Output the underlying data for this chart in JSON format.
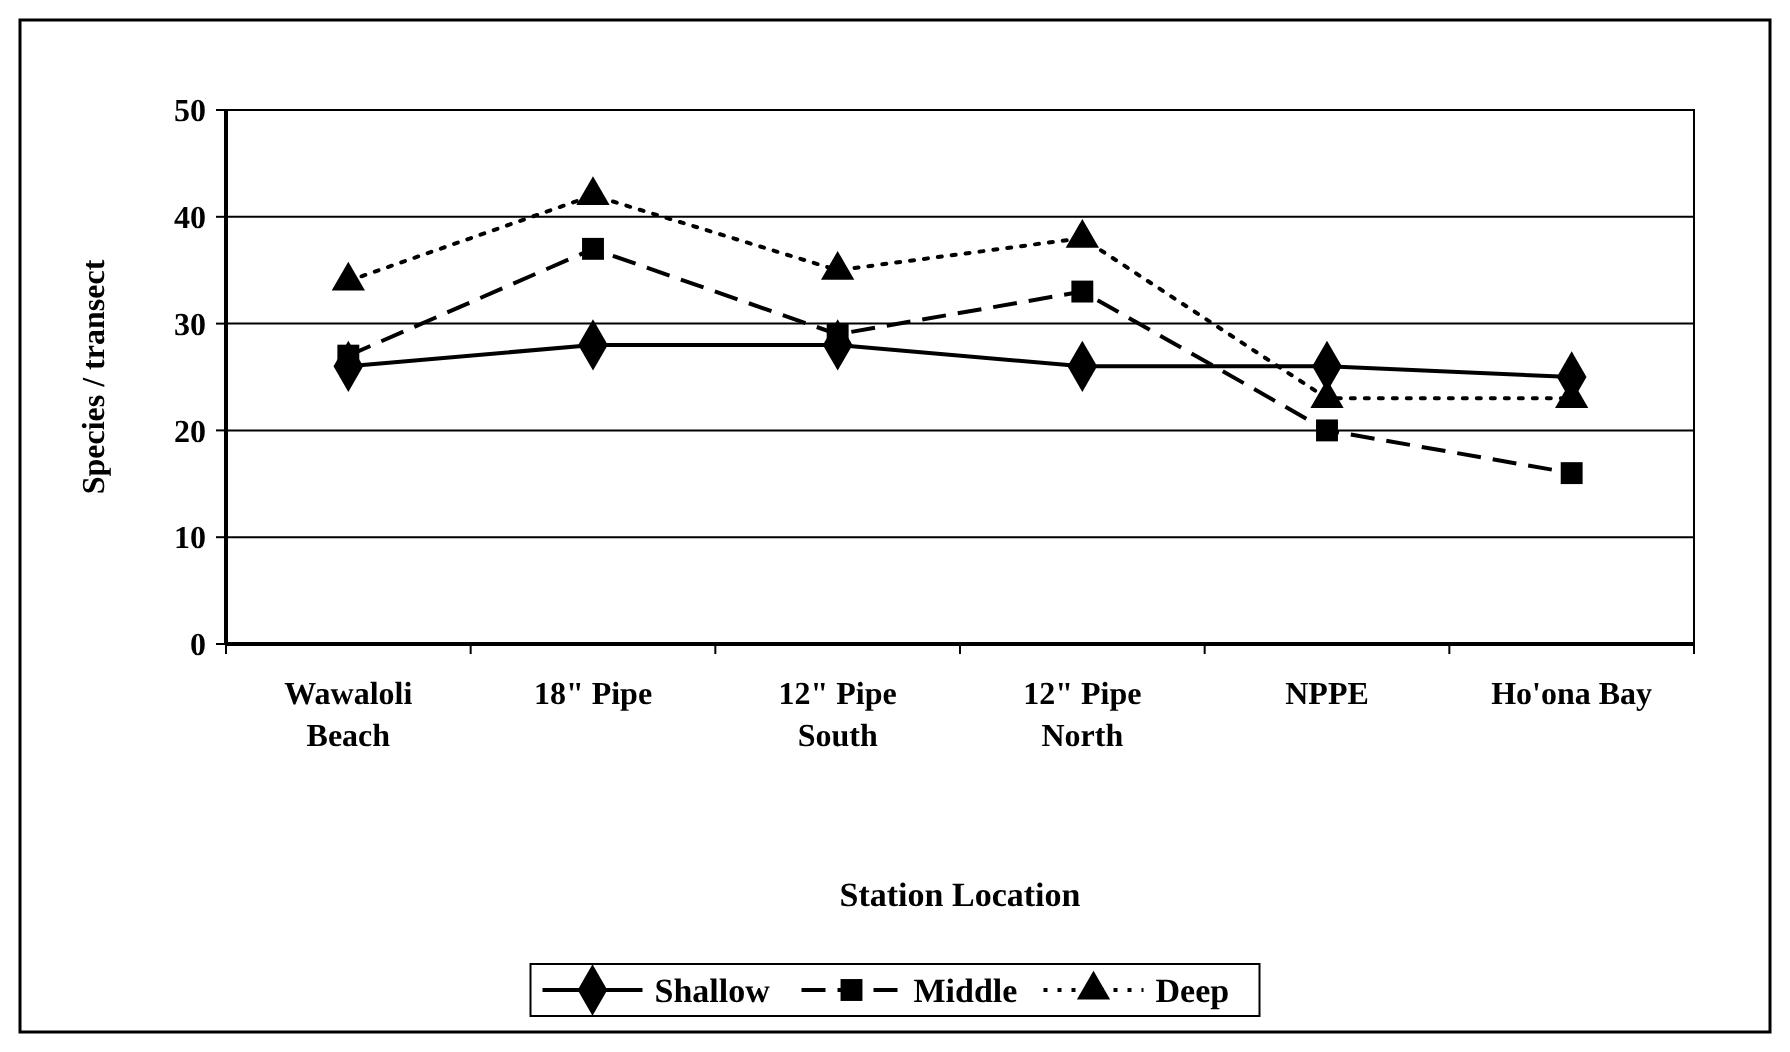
{
  "chart_data": {
    "type": "line",
    "xlabel": "Station Location",
    "ylabel": "Species / transect",
    "categories": [
      "Wawaloli Beach",
      "18\" Pipe",
      "12\" Pipe South",
      "12\" Pipe North",
      "NPPE",
      "Ho'ona Bay"
    ],
    "series": [
      {
        "name": "Shallow",
        "color": "#000000",
        "marker": "diamond",
        "line_style": "solid",
        "values": [
          26,
          28,
          28,
          26,
          26,
          25
        ]
      },
      {
        "name": "Middle",
        "color": "#000000",
        "marker": "square",
        "line_style": "dashed",
        "values": [
          27,
          37,
          29,
          33,
          20,
          16
        ]
      },
      {
        "name": "Deep",
        "color": "#000000",
        "marker": "triangle",
        "line_style": "dotted",
        "values": [
          34,
          42,
          35,
          38,
          23,
          23
        ]
      }
    ],
    "ylim": [
      0,
      50
    ],
    "yticks": [
      0,
      10,
      20,
      30,
      40,
      50
    ],
    "grid": "y",
    "legend": "bottom"
  }
}
